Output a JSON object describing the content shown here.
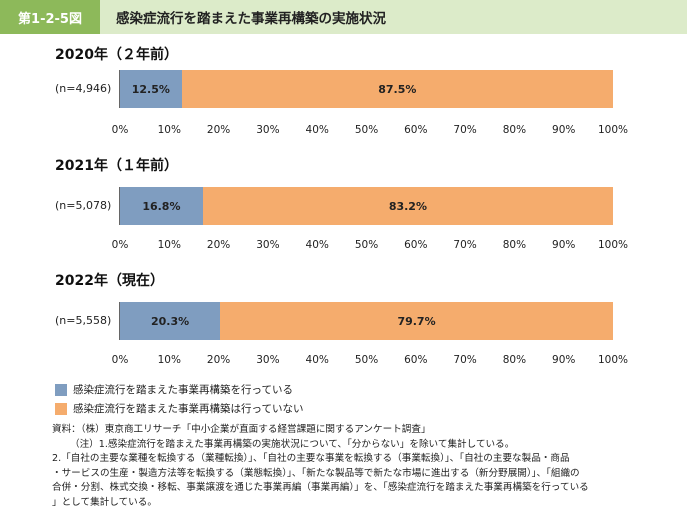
{
  "figure": {
    "number": "第1-2-5図",
    "title": "感染症流行を踏まえた事業再構築の実施状況"
  },
  "chart_data": [
    {
      "type": "bar",
      "orientation": "horizontal",
      "stacked": true,
      "title": "2020年（２年前）",
      "categories": [
        "(n=4,946)"
      ],
      "series": [
        {
          "name": "感染症流行を踏まえた事業再構築を行っている",
          "values": [
            12.5
          ],
          "label": "12.5%"
        },
        {
          "name": "感染症流行を踏まえた事業再構築は行っていない",
          "values": [
            87.5
          ],
          "label": "87.5%"
        }
      ],
      "xlim": [
        0,
        100
      ],
      "xticks": [
        "0%",
        "10%",
        "20%",
        "30%",
        "40%",
        "50%",
        "60%",
        "70%",
        "80%",
        "90%",
        "100%"
      ]
    },
    {
      "type": "bar",
      "orientation": "horizontal",
      "stacked": true,
      "title": "2021年（１年前）",
      "categories": [
        "(n=5,078)"
      ],
      "series": [
        {
          "name": "感染症流行を踏まえた事業再構築を行っている",
          "values": [
            16.8
          ],
          "label": "16.8%"
        },
        {
          "name": "感染症流行を踏まえた事業再構築は行っていない",
          "values": [
            83.2
          ],
          "label": "83.2%"
        }
      ],
      "xlim": [
        0,
        100
      ],
      "xticks": [
        "0%",
        "10%",
        "20%",
        "30%",
        "40%",
        "50%",
        "60%",
        "70%",
        "80%",
        "90%",
        "100%"
      ]
    },
    {
      "type": "bar",
      "orientation": "horizontal",
      "stacked": true,
      "title": "2022年（現在）",
      "categories": [
        "(n=5,558)"
      ],
      "series": [
        {
          "name": "感染症流行を踏まえた事業再構築を行っている",
          "values": [
            20.3
          ],
          "label": "20.3%"
        },
        {
          "name": "感染症流行を踏まえた事業再構築は行っていない",
          "values": [
            79.7
          ],
          "label": "79.7%"
        }
      ],
      "xlim": [
        0,
        100
      ],
      "xticks": [
        "0%",
        "10%",
        "20%",
        "30%",
        "40%",
        "50%",
        "60%",
        "70%",
        "80%",
        "90%",
        "100%"
      ]
    }
  ],
  "legend": {
    "items": [
      {
        "label": "感染症流行を踏まえた事業再構築を行っている",
        "color": "#7f9dc0"
      },
      {
        "label": "感染症流行を踏まえた事業再構築は行っていない",
        "color": "#f5ac6d"
      }
    ]
  },
  "colors": {
    "series_1": "#7f9dc0",
    "series_2": "#f5ac6d",
    "header_tag": "#8db95a",
    "header_band": "#dcebc9"
  },
  "notes": [
    "資料：（株）東京商工リサーチ「中小企業が直面する経営課題に関するアンケート調査」",
    "（注）1.感染症流行を踏まえた事業再構築の実施状況について、「分からない」を除いて集計している。",
    "2.「自社の主要な業種を転換する（業種転換）」、「自社の主要な事業を転換する（事業転換）」、「自社の主要な製品・商品",
    "・サービスの生産・製造方法等を転換する（業態転換）」、「新たな製品等で新たな市場に進出する（新分野展開）」、「組織の",
    "合併・分割、株式交換・移転、事業譲渡を通じた事業再編（事業再編）」を、「感染症流行を踏まえた事業再構築を行っている",
    "」として集計している。"
  ]
}
